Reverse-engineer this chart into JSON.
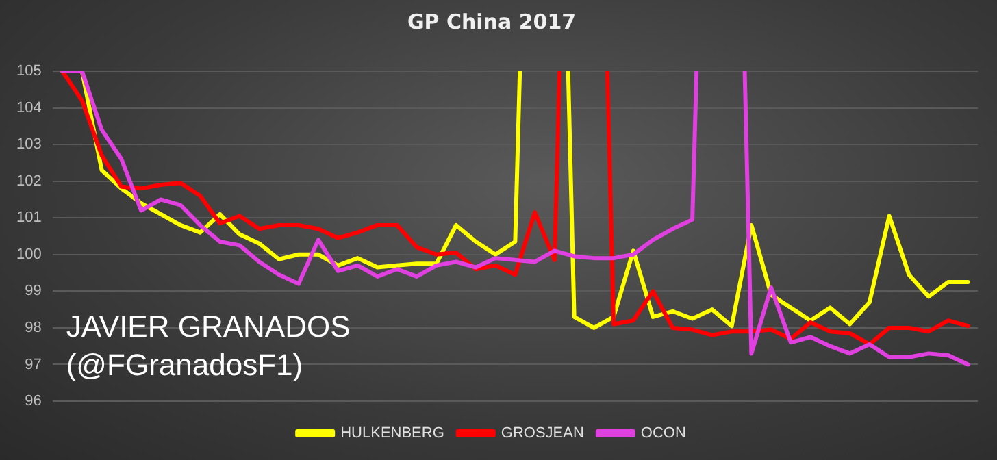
{
  "chart_data": {
    "type": "line",
    "title": "GP China 2017",
    "categories": [
      null,
      null,
      null,
      null,
      null,
      null,
      null,
      null,
      null,
      null,
      null,
      null,
      null,
      null,
      null,
      null,
      null,
      null,
      null,
      null,
      null,
      null,
      null,
      null,
      null,
      null,
      null,
      null,
      null,
      null,
      null,
      null,
      null,
      null,
      null,
      null,
      null,
      null,
      null,
      null,
      null,
      null,
      null,
      null,
      null,
      null,
      null
    ],
    "series": [
      {
        "name": "HULKENBERG",
        "color": "#ffff00",
        "values": [
          105,
          105,
          102.3,
          101.8,
          101.4,
          101.1,
          100.8,
          100.6,
          101.1,
          100.55,
          100.3,
          99.87,
          100.0,
          100.0,
          99.7,
          99.9,
          99.65,
          99.7,
          99.75,
          99.75,
          100.8,
          100.35,
          100.0,
          100.35,
          null,
          null,
          98.3,
          98.0,
          98.3,
          100.1,
          98.3,
          98.45,
          98.25,
          98.5,
          98.05,
          100.8,
          98.9,
          98.55,
          98.2,
          98.55,
          98.1,
          98.7,
          101.05,
          99.45,
          98.85,
          99.25,
          99.25
        ]
      },
      {
        "name": "GROSJEAN",
        "color": "#ff0000",
        "values": [
          105,
          104.2,
          102.7,
          101.85,
          101.8,
          101.9,
          101.95,
          101.6,
          100.85,
          101.05,
          100.7,
          100.8,
          100.8,
          100.7,
          100.45,
          100.6,
          100.8,
          100.8,
          100.2,
          100.0,
          100.05,
          99.6,
          99.7,
          99.45,
          101.15,
          99.85,
          null,
          null,
          98.1,
          98.2,
          99.0,
          98.0,
          97.95,
          97.8,
          97.9,
          97.9,
          97.95,
          97.7,
          98.15,
          97.9,
          97.85,
          97.55,
          98.0,
          98.0,
          97.9,
          98.2,
          98.05
        ]
      },
      {
        "name": "OCON",
        "color": "#e040e0",
        "values": [
          105,
          105,
          103.4,
          102.6,
          101.2,
          101.5,
          101.35,
          100.8,
          100.35,
          100.25,
          99.8,
          99.45,
          99.2,
          100.4,
          99.55,
          99.7,
          99.4,
          99.6,
          99.4,
          99.7,
          99.8,
          99.65,
          99.9,
          99.85,
          99.8,
          100.1,
          99.95,
          99.9,
          99.9,
          100.0,
          100.4,
          100.7,
          100.95,
          null,
          null,
          97.3,
          99.1,
          97.6,
          97.75,
          97.5,
          97.3,
          97.55,
          97.2,
          97.2,
          97.3,
          97.25,
          97.0
        ]
      }
    ],
    "ylim": [
      96,
      105
    ],
    "yticks": [
      96,
      97,
      98,
      99,
      100,
      101,
      102,
      103,
      104,
      105
    ],
    "grid": "y",
    "legend": "bottom",
    "marker": "none",
    "line_style": "solid",
    "annotations": [
      "JAVIER GRANADOS",
      "(@FGranadosF1)"
    ]
  }
}
